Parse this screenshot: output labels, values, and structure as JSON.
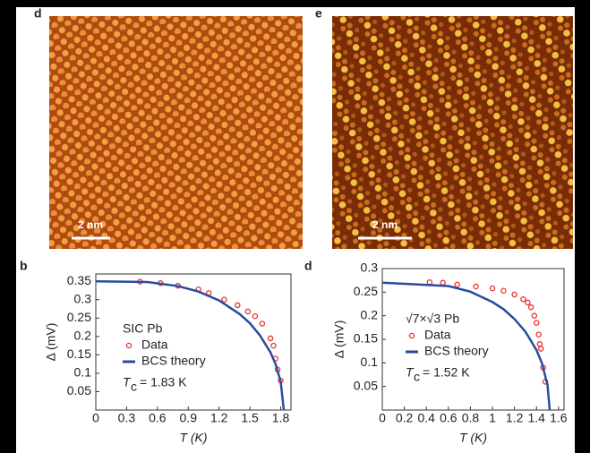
{
  "images": [
    {
      "panel": "d",
      "scale_bar": "2 nm"
    },
    {
      "panel": "e",
      "scale_bar": "2 nm"
    }
  ],
  "chart_data": [
    {
      "type": "line",
      "panel": "b",
      "ylabel": "Δ (mV)",
      "xlabel": "T (K)",
      "xlim": [
        0,
        1.9
      ],
      "xticks": [
        0,
        0.3,
        0.6,
        0.9,
        1.2,
        1.5,
        1.8
      ],
      "ylim": [
        0,
        0.37
      ],
      "yticks": [
        0.05,
        0.1,
        0.15,
        0.2,
        0.25,
        0.3,
        0.35
      ],
      "legend_title": "SIC Pb",
      "annotation": {
        "symbol": "T",
        "subscript": "c",
        "text": "= 1.83 K"
      },
      "series": [
        {
          "name": "Data",
          "type": "scatter",
          "color": "#e8322c",
          "x": [
            0.43,
            0.63,
            0.8,
            1.0,
            1.1,
            1.25,
            1.38,
            1.48,
            1.55,
            1.62,
            1.7,
            1.73,
            1.75,
            1.77,
            1.8
          ],
          "values": [
            0.349,
            0.345,
            0.338,
            0.328,
            0.318,
            0.3,
            0.285,
            0.268,
            0.255,
            0.235,
            0.195,
            0.175,
            0.14,
            0.11,
            0.08
          ]
        },
        {
          "name": "BCS theory",
          "type": "line",
          "color": "#2b4ba0",
          "x": [
            0,
            0.5,
            0.8,
            1.0,
            1.2,
            1.4,
            1.5,
            1.6,
            1.7,
            1.75,
            1.8,
            1.83
          ],
          "values": [
            0.35,
            0.348,
            0.337,
            0.322,
            0.298,
            0.261,
            0.236,
            0.202,
            0.157,
            0.125,
            0.077,
            0
          ]
        }
      ]
    },
    {
      "type": "line",
      "panel": "d",
      "ylabel": "Δ (mV)",
      "xlabel": "T (K)",
      "xlim": [
        0,
        1.65
      ],
      "xticks": [
        0,
        0.2,
        0.4,
        0.6,
        0.8,
        1,
        1.2,
        1.4,
        1.6
      ],
      "ylim": [
        0,
        0.3
      ],
      "yticks": [
        0.05,
        0.1,
        0.15,
        0.2,
        0.25,
        0.3
      ],
      "legend_title": "√7×√3 Pb",
      "annotation": {
        "symbol": "T",
        "subscript": "c",
        "text": "= 1.52 K"
      },
      "series": [
        {
          "name": "Data",
          "type": "scatter",
          "color": "#e8322c",
          "x": [
            0.43,
            0.55,
            0.68,
            0.85,
            1.0,
            1.1,
            1.2,
            1.28,
            1.32,
            1.35,
            1.38,
            1.4,
            1.42,
            1.43,
            1.44,
            1.46,
            1.48
          ],
          "values": [
            0.271,
            0.27,
            0.266,
            0.262,
            0.258,
            0.253,
            0.245,
            0.235,
            0.228,
            0.218,
            0.2,
            0.185,
            0.16,
            0.14,
            0.13,
            0.09,
            0.06
          ]
        },
        {
          "name": "BCS theory",
          "type": "line",
          "color": "#2b4ba0",
          "x": [
            0,
            0.6,
            0.8,
            1.0,
            1.1,
            1.2,
            1.3,
            1.4,
            1.45,
            1.5,
            1.52
          ],
          "values": [
            0.27,
            0.263,
            0.251,
            0.229,
            0.214,
            0.193,
            0.166,
            0.127,
            0.099,
            0.053,
            0
          ]
        }
      ]
    }
  ]
}
